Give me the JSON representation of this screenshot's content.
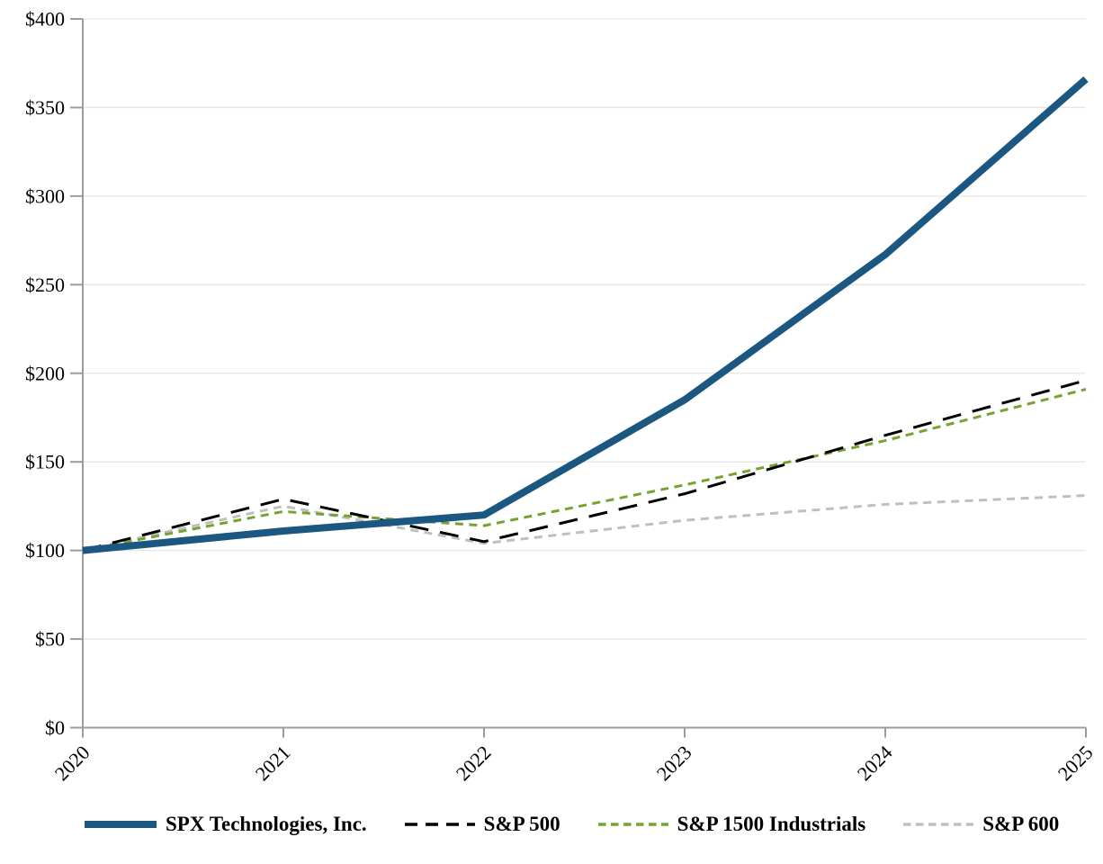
{
  "chart_data": {
    "type": "line",
    "title": "",
    "x_labels": [
      "2020",
      "2021",
      "2022",
      "2023",
      "2024",
      "2025"
    ],
    "y_ticks": [
      0,
      50,
      100,
      150,
      200,
      250,
      300,
      350,
      400
    ],
    "y_tick_labels": [
      "$0",
      "$50",
      "$100",
      "$150",
      "$200",
      "$250",
      "$300",
      "$350",
      "$400"
    ],
    "ylim": [
      0,
      400
    ],
    "grid": "horizontal",
    "legend_position": "bottom",
    "x_label_rotation_deg": -45,
    "series": [
      {
        "name": "SPX Technologies, Inc.",
        "values": [
          100,
          111,
          120,
          185,
          267,
          366
        ],
        "color": "#1B5781",
        "style": "solid"
      },
      {
        "name": "S&P 500",
        "values": [
          100,
          129,
          105,
          132,
          165,
          196
        ],
        "color": "#000000",
        "style": "long-dash"
      },
      {
        "name": "S&P 1500 Industrials",
        "values": [
          100,
          122,
          114,
          137,
          162,
          191
        ],
        "color": "#76A32E",
        "style": "short-dash"
      },
      {
        "name": "S&P 600",
        "values": [
          100,
          125,
          104,
          117,
          126,
          131
        ],
        "color": "#BFBFBF",
        "style": "short-dash"
      }
    ]
  },
  "colors": {
    "axis": "#9C9C9C",
    "grid": "#E6E6E6",
    "text": "#000000",
    "background": "#FFFFFF"
  }
}
